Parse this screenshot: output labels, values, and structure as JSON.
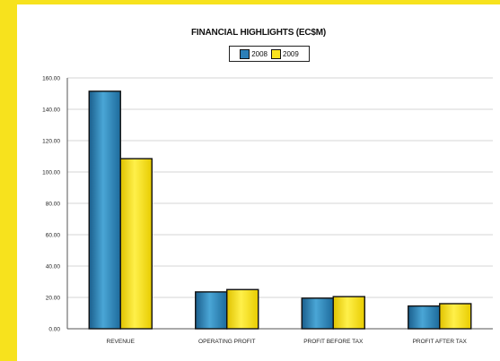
{
  "chart_data": {
    "type": "bar",
    "title": "FINANCIAL HIGHLIGHTS (EC$M)",
    "categories": [
      "REVENUE",
      "OPERATING PROFIT",
      "PROFIT BEFORE TAX",
      "PROFIT AFTER TAX"
    ],
    "series": [
      {
        "name": "2008",
        "values": [
          151.5,
          23.5,
          19.5,
          14.5
        ],
        "color": "#2c7fb8"
      },
      {
        "name": "2009",
        "values": [
          108.5,
          25.0,
          20.5,
          16.0
        ],
        "color": "#f9e31e"
      }
    ],
    "ylim": [
      0,
      160
    ],
    "yticks": [
      "0.00",
      "20.00",
      "40.00",
      "60.00",
      "80.00",
      "100.00",
      "120.00",
      "140.00",
      "160.00"
    ],
    "xlabel": "",
    "ylabel": "",
    "grid": true,
    "legend_position": "top-center"
  },
  "colors": {
    "background": "#f7e21d",
    "panel": "#ffffff",
    "gridline": "#c8c8c8"
  }
}
